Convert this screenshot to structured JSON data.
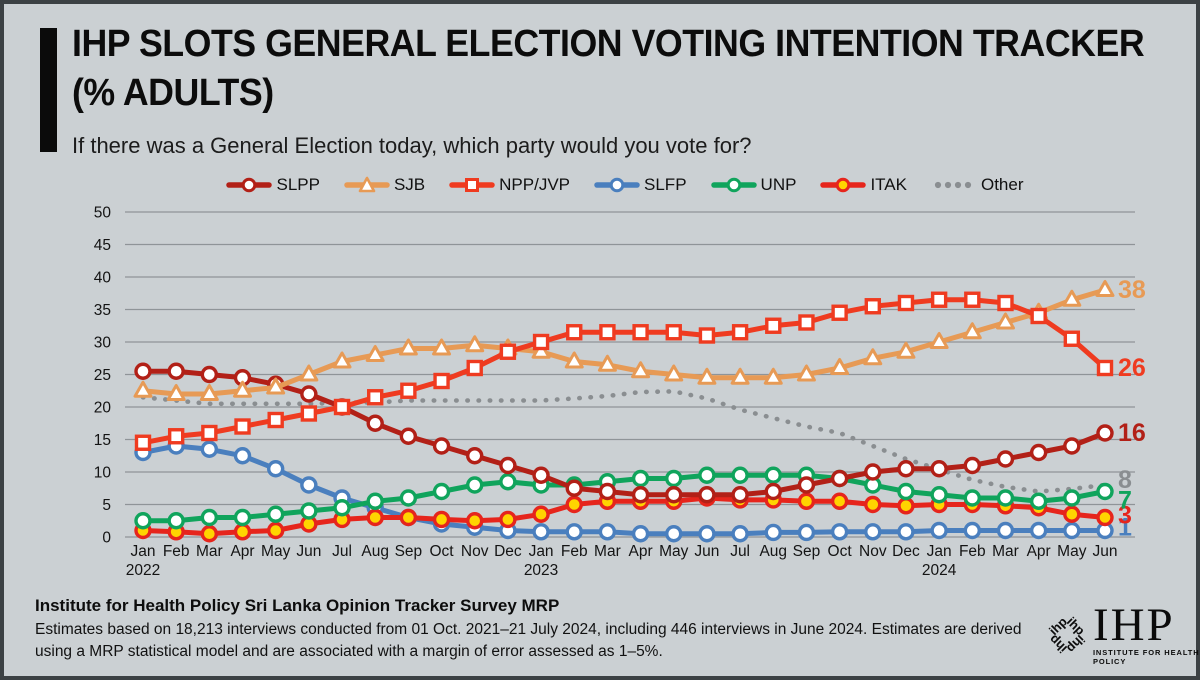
{
  "header": {
    "title_line1": "IHP SLOTS GENERAL ELECTION VOTING INTENTION TRACKER",
    "title_line2": "(% ADULTS)",
    "subtitle": "If there was a General Election today, which party would you vote for?"
  },
  "footer": {
    "source_bold": "Institute for Health Policy Sri Lanka Opinion Tracker Survey MRP",
    "note": "Estimates based on 18,213 interviews conducted from 01 Oct. 2021–21 July 2024, including 446 interviews in June 2024. Estimates are derived using a MRP statistical model and are associated with a margin of error assessed as 1–5%.",
    "logo_text": "IHP",
    "logo_subtext": "INSTITUTE FOR HEALTH POLICY",
    "logo_mark_text": "ihp"
  },
  "colors": {
    "background": "#cbd0d3",
    "frame": "#3c4144",
    "gridline": "#8f9498",
    "axis_text": "#141414"
  },
  "chart_data": {
    "type": "line",
    "title": "IHP SLOTS General Election Voting Intention Tracker (% adults)",
    "xlabel": "",
    "ylabel": "",
    "ylim": [
      0,
      50
    ],
    "ytick_step": 5,
    "grid": true,
    "legend_position": "top",
    "x_labels": [
      "Jan",
      "Feb",
      "Mar",
      "Apr",
      "May",
      "Jun",
      "Jul",
      "Aug",
      "Sep",
      "Oct",
      "Nov",
      "Dec",
      "Jan",
      "Feb",
      "Mar",
      "Apr",
      "May",
      "Jun",
      "Jul",
      "Aug",
      "Sep",
      "Oct",
      "Nov",
      "Dec",
      "Jan",
      "Feb",
      "Mar",
      "Apr",
      "May",
      "Jun"
    ],
    "year_breaks": [
      {
        "index": 0,
        "year": "2022"
      },
      {
        "index": 12,
        "year": "2023"
      },
      {
        "index": 24,
        "year": "2024"
      }
    ],
    "series": [
      {
        "name": "SLPP",
        "color": "#b22017",
        "marker": "circle",
        "marker_fill": "#ffffff",
        "style": "solid",
        "end_label": "16",
        "values": [
          25.5,
          25.5,
          25,
          24.5,
          23.5,
          22,
          20,
          17.5,
          15.5,
          14,
          12.5,
          11,
          9.5,
          7.5,
          7,
          6.5,
          6.5,
          6.5,
          6.5,
          7,
          8,
          9,
          10,
          10.5,
          10.5,
          11,
          12,
          13,
          14,
          16
        ]
      },
      {
        "name": "SJB",
        "color": "#e79a55",
        "marker": "triangle",
        "marker_fill": "#ffffff",
        "style": "solid",
        "end_label": "38",
        "values": [
          22.5,
          22,
          22,
          22.5,
          23,
          25,
          27,
          28,
          29,
          29,
          29.5,
          29,
          28.5,
          27,
          26.5,
          25.5,
          25,
          24.5,
          24.5,
          24.5,
          25,
          26,
          27.5,
          28.5,
          30,
          31.5,
          33,
          34.5,
          36.5,
          38
        ]
      },
      {
        "name": "NPP/JVP",
        "color": "#ef3b20",
        "marker": "square",
        "marker_fill": "#ffffff",
        "style": "solid",
        "end_label": "26",
        "values": [
          14.5,
          15.5,
          16,
          17,
          18,
          19,
          20,
          21.5,
          22.5,
          24,
          26,
          28.5,
          30,
          31.5,
          31.5,
          31.5,
          31.5,
          31,
          31.5,
          32.5,
          33,
          34.5,
          35.5,
          36,
          36.5,
          36.5,
          36,
          34,
          30.5,
          26
        ]
      },
      {
        "name": "SLFP",
        "color": "#4a7fbe",
        "marker": "circle",
        "marker_fill": "#ffffff",
        "style": "solid",
        "end_label": "1",
        "values": [
          13,
          14,
          13.5,
          12.5,
          10.5,
          8,
          6,
          4.5,
          3,
          2,
          1.5,
          1,
          0.8,
          0.8,
          0.8,
          0.5,
          0.5,
          0.5,
          0.5,
          0.7,
          0.7,
          0.8,
          0.8,
          0.8,
          1,
          1,
          1,
          1,
          1,
          1
        ]
      },
      {
        "name": "UNP",
        "color": "#10a45c",
        "marker": "circle",
        "marker_fill": "#ffffff",
        "style": "solid",
        "end_label": "7",
        "values": [
          2.5,
          2.5,
          3,
          3,
          3.5,
          4,
          4.5,
          5.5,
          6,
          7,
          8,
          8.5,
          8,
          8,
          8.5,
          9,
          9,
          9.5,
          9.5,
          9.5,
          9.5,
          9,
          8,
          7,
          6.5,
          6,
          6,
          5.5,
          6,
          7
        ]
      },
      {
        "name": "ITAK",
        "color": "#e6251c",
        "marker": "circle",
        "marker_fill": "#ffd400",
        "style": "solid",
        "end_label": "3",
        "values": [
          1,
          0.8,
          0.5,
          0.8,
          1,
          2,
          2.7,
          3,
          3,
          2.7,
          2.5,
          2.7,
          3.5,
          5,
          5.5,
          5.5,
          5.5,
          6,
          5.7,
          5.7,
          5.5,
          5.5,
          5,
          4.8,
          5,
          5,
          4.8,
          4.5,
          3.5,
          3
        ]
      },
      {
        "name": "Other",
        "color": "#8a8e91",
        "marker": "none",
        "marker_fill": "none",
        "style": "dotted",
        "end_label": "8",
        "values": [
          21.5,
          21,
          20.5,
          20.5,
          20.5,
          20.5,
          20.7,
          20.7,
          21,
          21,
          21,
          21,
          21,
          21.3,
          21.7,
          22.3,
          22.4,
          21.3,
          19.6,
          18.3,
          17,
          16,
          14,
          12,
          10.4,
          8.8,
          7.7,
          7,
          7.4,
          8
        ]
      }
    ]
  }
}
